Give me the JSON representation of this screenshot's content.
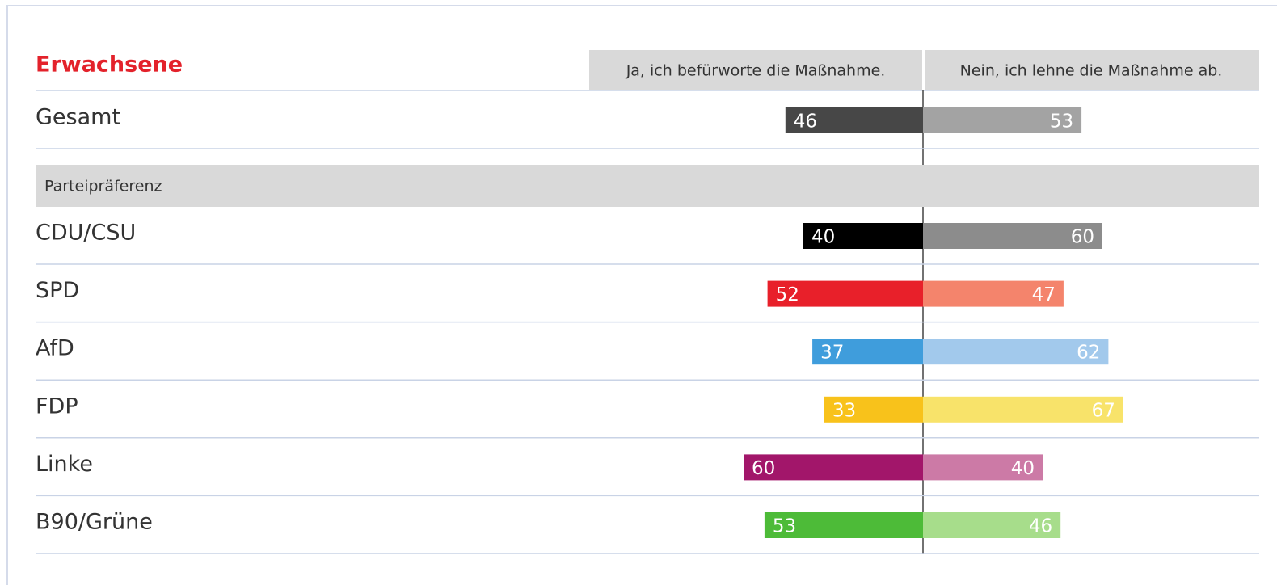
{
  "chart_data": {
    "type": "diverging_bar",
    "title": "Erwachsene",
    "group_label": "Parteipräferenz",
    "categories": [
      "Gesamt",
      "CDU/CSU",
      "SPD",
      "AfD",
      "FDP",
      "Linke",
      "B90/Grüne"
    ],
    "series": [
      {
        "name": "Ja, ich befürworte die Maßnahme.",
        "values": [
          46,
          40,
          52,
          37,
          33,
          60,
          53
        ],
        "colors": [
          "#474747",
          "#000000",
          "#e8202a",
          "#3f9ddc",
          "#f8c21b",
          "#a2166a",
          "#4dbb38"
        ]
      },
      {
        "name": "Nein, ich lehne die Maßnahme ab.",
        "values": [
          53,
          60,
          47,
          62,
          67,
          40,
          46
        ],
        "colors": [
          "#a3a3a3",
          "#8c8c8c",
          "#f4846c",
          "#a2c9ec",
          "#f8e36a",
          "#cc7aa6",
          "#a7dd8b"
        ]
      }
    ]
  }
}
